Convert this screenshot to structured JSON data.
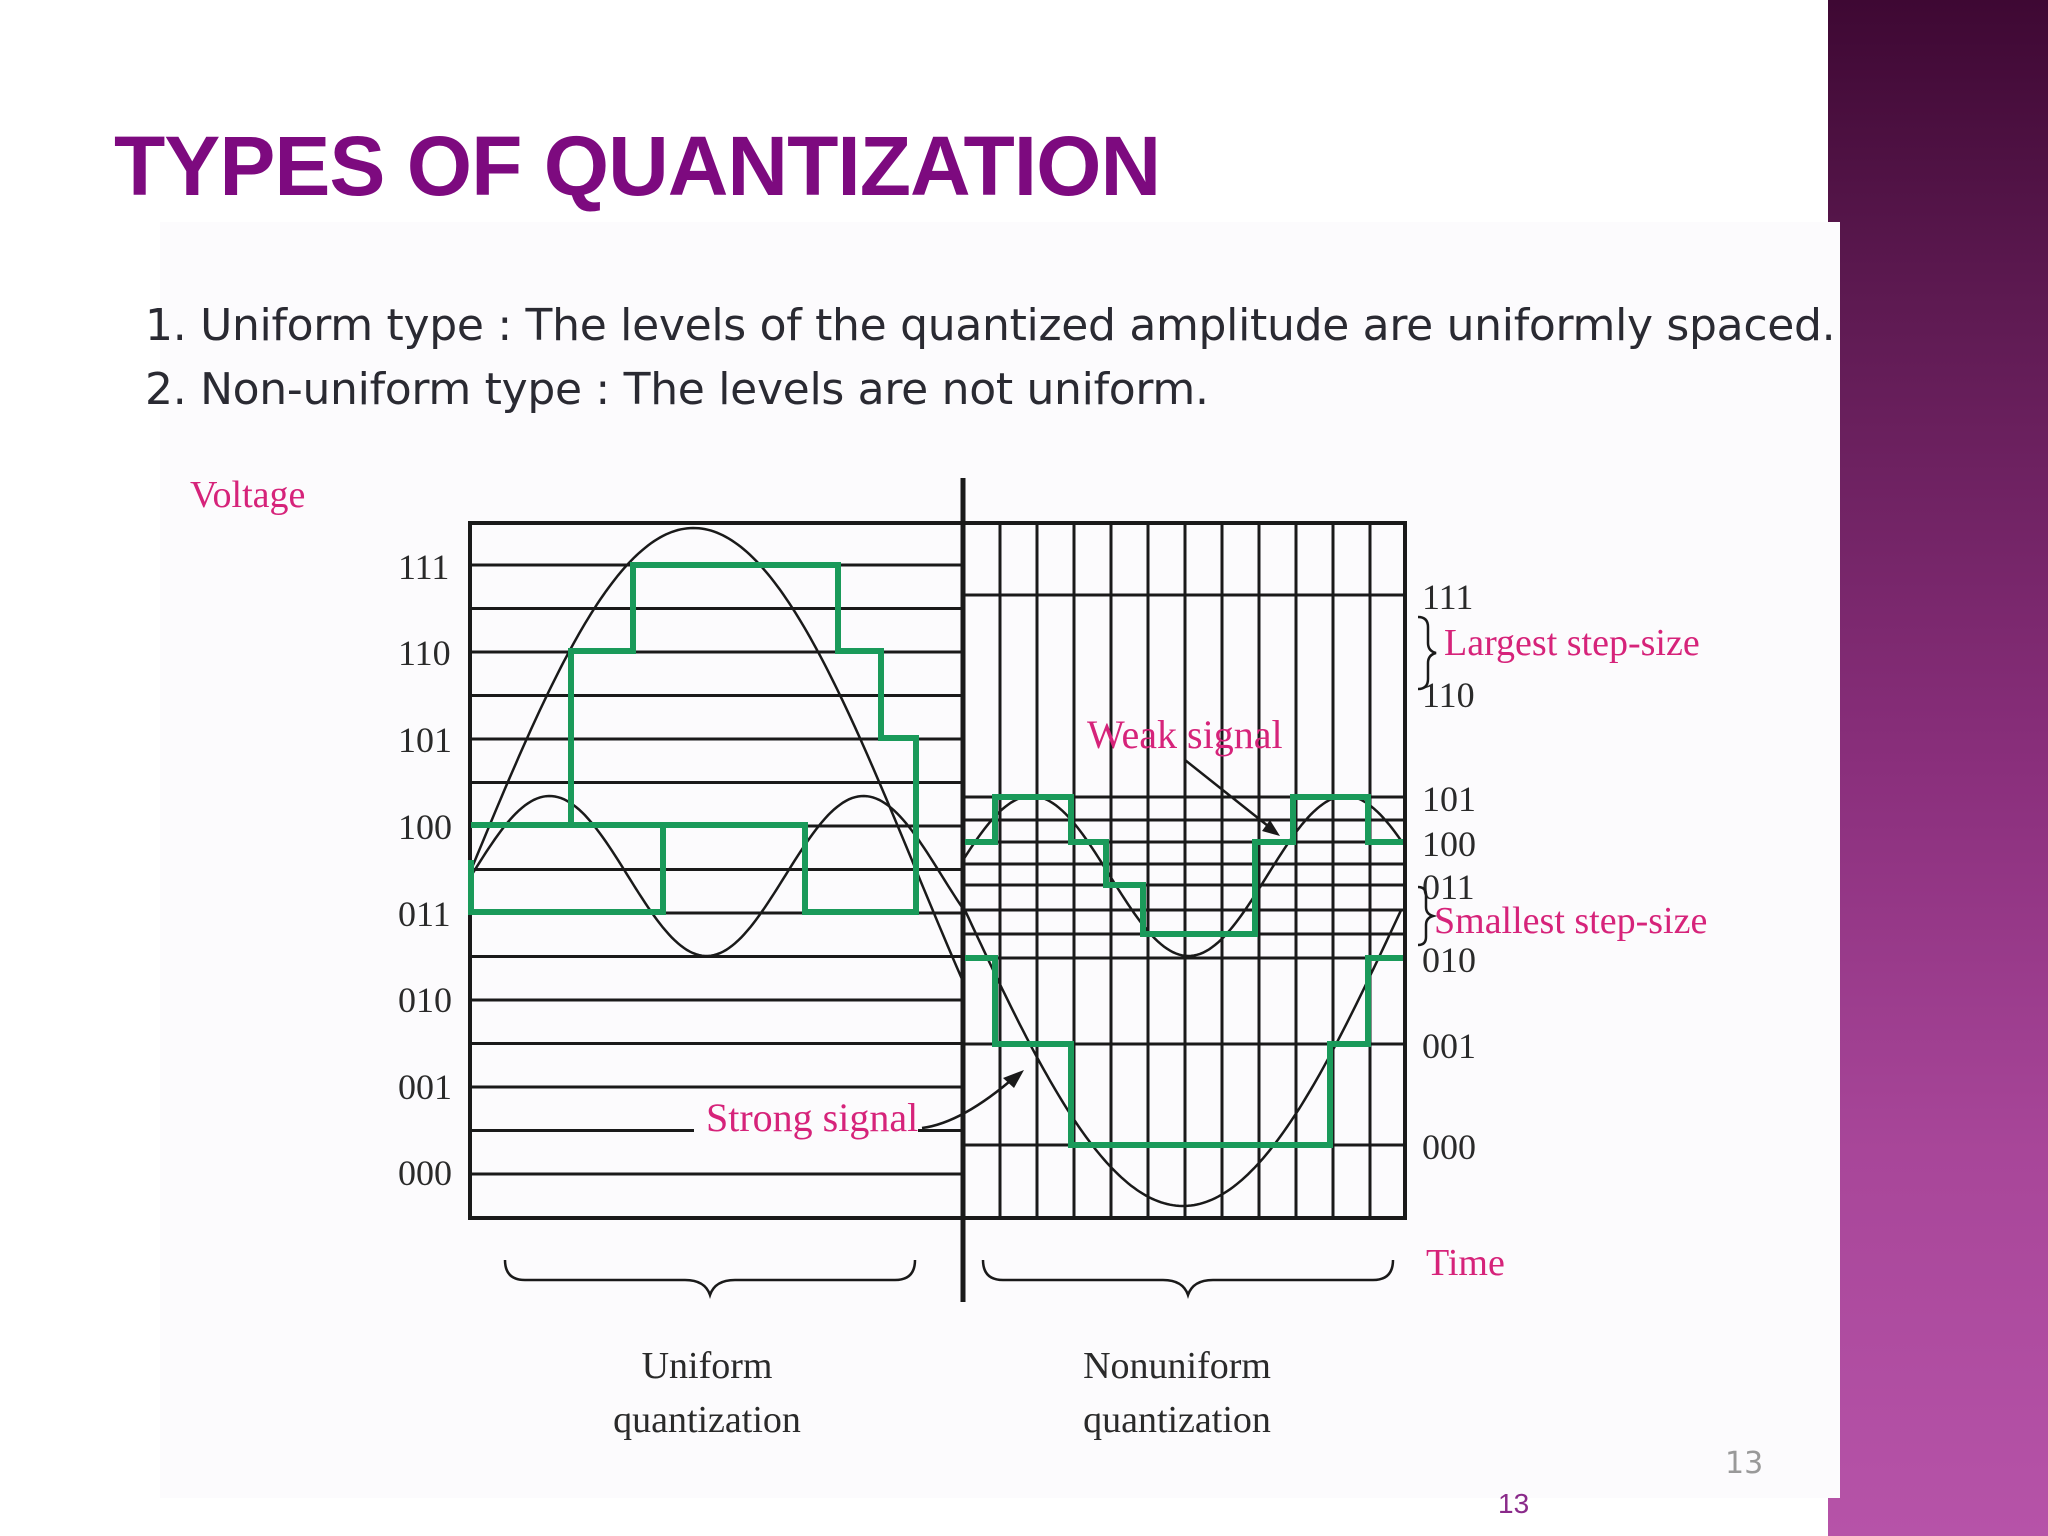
{
  "slide": {
    "title": "TYPES OF QUANTIZATION",
    "bullets": [
      "1. Uniform type : The levels of the quantized amplitude are uniformly spaced.",
      "2. Non-uniform type : The levels are not uniform."
    ],
    "page_number_image": "13",
    "page_number": "13"
  },
  "diagram": {
    "y_axis_label": "Voltage",
    "x_axis_label": "Time",
    "uniform_levels": [
      "111",
      "110",
      "101",
      "100",
      "011",
      "010",
      "001",
      "000"
    ],
    "nonuniform_levels": [
      "111",
      "110",
      "101",
      "100",
      "011",
      "010",
      "001",
      "000"
    ],
    "annotations": {
      "largest_step": "Largest step-size",
      "smallest_step": "Smallest step-size",
      "weak_signal": "Weak signal",
      "strong_signal": "Strong signal"
    },
    "section_labels": {
      "uniform_line1": "Uniform",
      "uniform_line2": "quantization",
      "nonuniform_line1": "Nonuniform",
      "nonuniform_line2": "quantization"
    },
    "colors": {
      "title": "#7d0a7f",
      "annotation": "#d6237a",
      "quantized_signal": "#1a9a5a",
      "grid": "#1a1a1a"
    }
  }
}
